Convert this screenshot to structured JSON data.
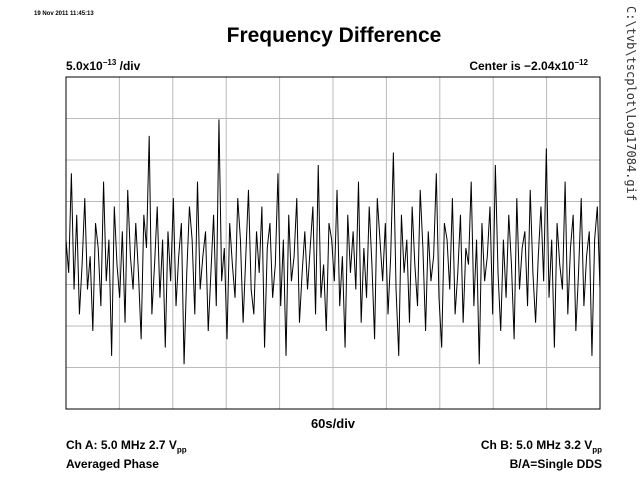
{
  "timestamp": "19 Nov 2011 11:45:13",
  "file_path": "C:\\tvb\\tscplot\\Log17084.gif",
  "title": "Frequency Difference",
  "scale": {
    "mantissa": "5.0x10",
    "exponent": "−13",
    "suffix": " /div"
  },
  "center": {
    "prefix": "Center is −2.04x10",
    "exponent": "−12"
  },
  "x_scale": "60s/div",
  "channel_a": {
    "line1_prefix": "Ch A: 5.0 MHz 2.7 V",
    "line1_sub": "pp",
    "line2": "Averaged Phase"
  },
  "channel_b": {
    "line1_prefix": "Ch B: 5.0 MHz 3.2 V",
    "line1_sub": "pp",
    "line2": "B/A=Single DDS"
  },
  "colors": {
    "grid": "#bbbbbb",
    "frame": "#000000",
    "trace": "#000000"
  },
  "chart_data": {
    "type": "line",
    "title": "Frequency Difference",
    "xlabel": "60s/div",
    "ylabel": "5.0x10−13 /div",
    "x_divisions": 10,
    "y_divisions": 8,
    "xlim": [
      0,
      600
    ],
    "ylim": [
      -4.04e-12,
      -4e-14
    ],
    "center": -2.04e-12,
    "grid": true,
    "series": [
      {
        "values": [
          -2e-12,
          -2.4e-12,
          -1.2e-12,
          -2.6e-12,
          -1.7e-12,
          -2.9e-12,
          -2.3e-12,
          -1.5e-12,
          -2.6e-12,
          -2.2e-12,
          -3.1e-12,
          -1.8e-12,
          -2.1e-12,
          -2.8e-12,
          -1.3e-12,
          -2.5e-12,
          -2e-12,
          -3.4e-12,
          -1.6e-12,
          -2.3e-12,
          -2.7e-12,
          -1.9e-12,
          -3e-12,
          -1.4e-12,
          -2.2e-12,
          -2.6e-12,
          -1.8e-12,
          -2.4e-12,
          -3.2e-12,
          -1.7e-12,
          -2.1e-12,
          -7.5e-13,
          -2.9e-12,
          -2.3e-12,
          -1.6e-12,
          -2.7e-12,
          -2e-12,
          -3.3e-12,
          -1.9e-12,
          -2.5e-12,
          -1.5e-12,
          -2.8e-12,
          -2.2e-12,
          -1.8e-12,
          -3.5e-12,
          -2.4e-12,
          -1.6e-12,
          -2e-12,
          -2.9e-12,
          -1.3e-12,
          -2.6e-12,
          -2.2e-12,
          -1.9e-12,
          -3.1e-12,
          -2.4e-12,
          -1.7e-12,
          -2.8e-12,
          -5.5e-13,
          -2.5e-12,
          -2.1e-12,
          -3.2e-12,
          -1.8e-12,
          -2.3e-12,
          -2.7e-12,
          -1.5e-12,
          -2e-12,
          -3e-12,
          -2.2e-12,
          -1.4e-12,
          -2.6e-12,
          -2.9e-12,
          -1.9e-12,
          -2.4e-12,
          -1.6e-12,
          -3.3e-12,
          -2.1e-12,
          -1.8e-12,
          -2.7e-12,
          -2.3e-12,
          -1.2e-12,
          -2.8e-12,
          -2e-12,
          -3.4e-12,
          -1.7e-12,
          -2.5e-12,
          -2.2e-12,
          -1.5e-12,
          -3e-12,
          -2.4e-12,
          -1.9e-12,
          -2.6e-12,
          -2.1e-12,
          -1.6e-12,
          -2.9e-12,
          -1.1e-12,
          -2.7e-12,
          -2.3e-12,
          -3.1e-12,
          -1.8e-12,
          -2e-12,
          -2.5e-12,
          -1.4e-12,
          -2.8e-12,
          -2.2e-12,
          -3.3e-12,
          -1.7e-12,
          -2.4e-12,
          -1.9e-12,
          -2.6e-12,
          -1.3e-12,
          -3e-12,
          -2.1e-12,
          -2.7e-12,
          -1.6e-12,
          -2.3e-12,
          -3.2e-12,
          -1.5e-12,
          -2e-12,
          -2.5e-12,
          -1.8e-12,
          -2.9e-12,
          -2.2e-12,
          -9.5e-13,
          -2.6e-12,
          -3.4e-12,
          -1.7e-12,
          -2.4e-12,
          -2e-12,
          -3e-12,
          -1.6e-12,
          -2.3e-12,
          -2.8e-12,
          -1.4e-12,
          -2.1e-12,
          -3.1e-12,
          -1.9e-12,
          -2.5e-12,
          -2.2e-12,
          -1.2e-12,
          -2.7e-12,
          -3.3e-12,
          -1.8e-12,
          -2e-12,
          -2.6e-12,
          -1.5e-12,
          -2.9e-12,
          -2.4e-12,
          -1.7e-12,
          -3e-12,
          -2.1e-12,
          -2.3e-12,
          -1.3e-12,
          -2.8e-12,
          -2e-12,
          -3.5e-12,
          -1.8e-12,
          -2.5e-12,
          -2.2e-12,
          -1.6e-12,
          -2.9e-12,
          -1.1e-12,
          -2.4e-12,
          -3.1e-12,
          -2e-12,
          -2.7e-12,
          -1.7e-12,
          -2.3e-12,
          -3.2e-12,
          -1.5e-12,
          -2.6e-12,
          -2.1e-12,
          -1.9e-12,
          -2.8e-12,
          -1.4e-12,
          -2.4e-12,
          -3e-12,
          -2.2e-12,
          -1.6e-12,
          -2.5e-12,
          -9e-13,
          -2.7e-12,
          -2e-12,
          -3.3e-12,
          -1.8e-12,
          -2.3e-12,
          -2.6e-12,
          -1.3e-12,
          -2.9e-12,
          -2.1e-12,
          -1.7e-12,
          -3.1e-12,
          -2.4e-12,
          -1.5e-12,
          -2.8e-12,
          -2.2e-12,
          -1.9e-12,
          -3.4e-12,
          -2e-12,
          -1.6e-12,
          -2.6e-12
        ]
      }
    ]
  }
}
